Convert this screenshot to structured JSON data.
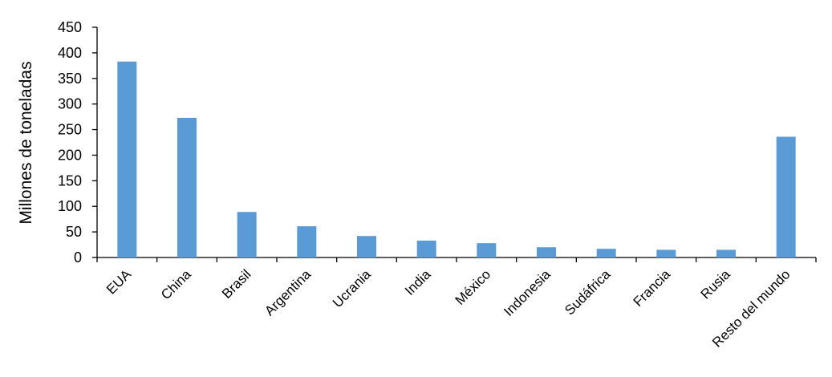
{
  "chart_data": {
    "type": "bar",
    "ylabel": "Millones de toneladas",
    "categories": [
      "EUA",
      "China",
      "Brasil",
      "Argentina",
      "Ucrania",
      "India",
      "México",
      "Indonesia",
      "Sudáfrica",
      "Francia",
      "Rusia",
      "Resto del mundo"
    ],
    "values": [
      383,
      273,
      89,
      61,
      42,
      33,
      28,
      20,
      17,
      15,
      15,
      236
    ],
    "color": "#5b9bd5",
    "ylim": [
      0,
      450
    ],
    "yticks": [
      0,
      50,
      100,
      150,
      200,
      250,
      300,
      350,
      400,
      450
    ],
    "grid": false
  }
}
